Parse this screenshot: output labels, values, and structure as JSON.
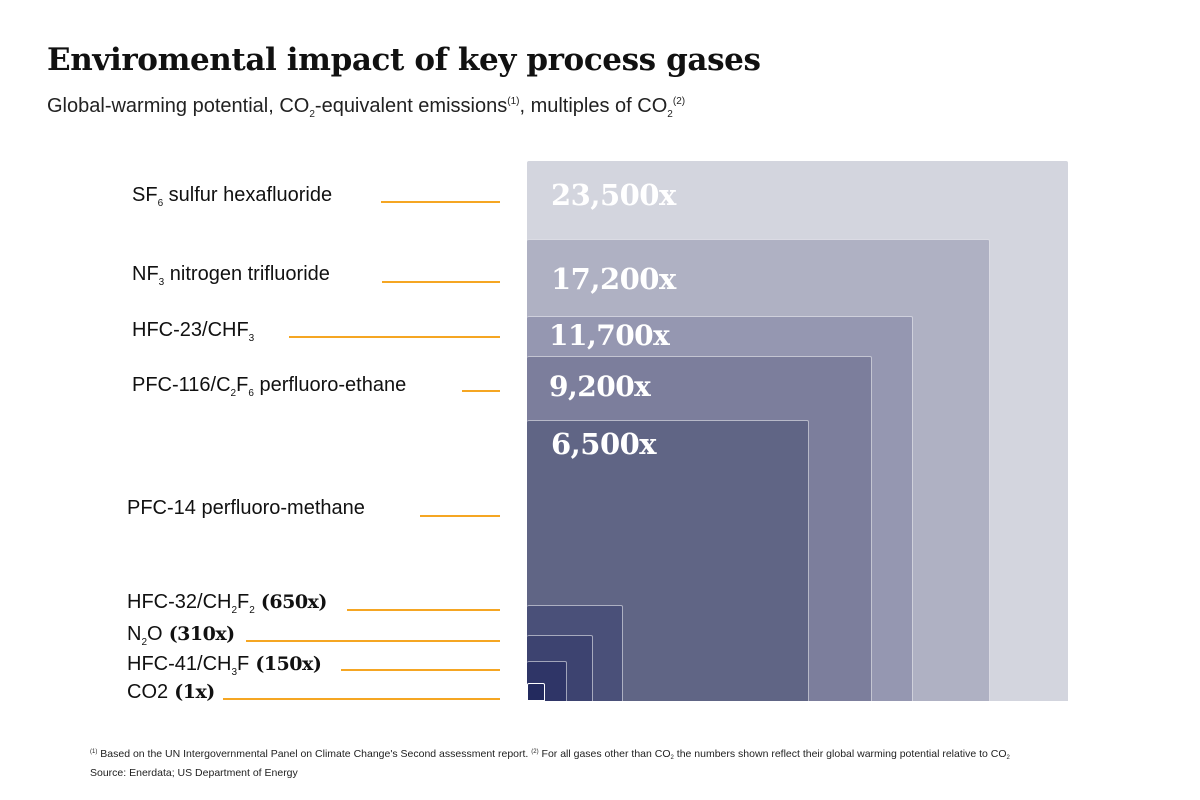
{
  "title": "Enviromental impact of key process gases",
  "subtitle": {
    "part1": "Global-warming potential, CO",
    "part1_sub": "2",
    "part2": "-equivalent emissions",
    "note1": "(1)",
    "part3": ", multiples of CO",
    "part3_sub": "2",
    "note2": "(2)"
  },
  "colors": {
    "leader": "#f5a623",
    "boxes": [
      "#d3d5de",
      "#afb1c3",
      "#9597b1",
      "#7c7e9c",
      "#606585",
      "#4a5079",
      "#3d4370",
      "#2f3567",
      "#232a5e"
    ]
  },
  "labels": {
    "sf6": {
      "pre": "SF",
      "sub": "6",
      "post": " sulfur hexafluoride"
    },
    "nf3": {
      "pre": "NF",
      "sub": "3",
      "post": " nitrogen trifluoride"
    },
    "hfc23": {
      "pre": "HFC-23/CHF",
      "sub": "3"
    },
    "pfc116": {
      "pre": "PFC-116/C",
      "sub1": "2",
      "mid": "F",
      "sub2": "6",
      "post": " perfluoro-ethane"
    },
    "pfc14": {
      "text": "PFC-14 perfluoro-methane"
    },
    "hfc32": {
      "pre": "HFC-32/CH",
      "sub1": "2",
      "mid": "F",
      "sub2": "2",
      "value": " (650x)"
    },
    "n2o": {
      "pre": "N",
      "sub": "2",
      "post": "O",
      "value": " (310x)"
    },
    "hfc41": {
      "pre": "HFC-41/CH",
      "sub": "3",
      "post": "F",
      "value": " (150x)"
    },
    "co2": {
      "pre": "CO2",
      "value": " (1x)"
    }
  },
  "chart_data": {
    "type": "nested-area",
    "title": "Enviromental impact of key process gases",
    "unit": "multiples of CO2",
    "categories": [
      "SF6 sulfur hexafluoride",
      "NF3 nitrogen trifluoride",
      "HFC-23/CHF3",
      "PFC-116/C2F6 perfluoro-ethane",
      "PFC-14 perfluoro-methane",
      "HFC-32/CH2F2",
      "N2O",
      "HFC-41/CH3F",
      "CO2"
    ],
    "values": [
      23500,
      17200,
      11700,
      9200,
      6500,
      650,
      310,
      150,
      1
    ],
    "value_labels": [
      "23,500x",
      "17,200x",
      "11,700x",
      "9,200x",
      "6,500x",
      "650x",
      "310x",
      "150x",
      "1x"
    ]
  },
  "footnote": {
    "n1": "(1)",
    "text1": " Based on the UN Intergovernmental Panel on Climate Change's Second assessment report. ",
    "n2": "(2)",
    "text2": " For all gases other than CO",
    "sub1": "2",
    "text3": " the numbers shown reflect their global warming potential relative to CO",
    "sub2": "2"
  },
  "source": "Source: Enerdata; US Department of Energy"
}
